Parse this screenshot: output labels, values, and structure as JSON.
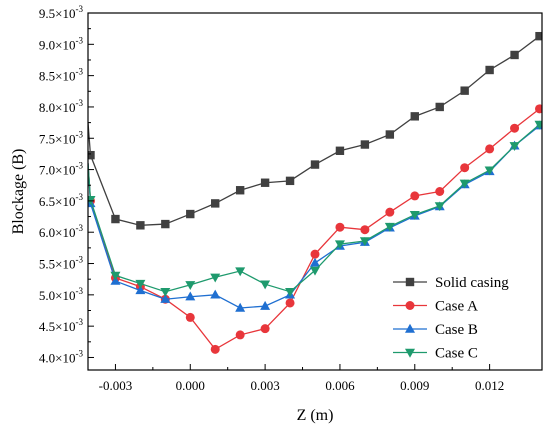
{
  "chart_data": {
    "type": "line",
    "title": "",
    "xlabel": "Z (m)",
    "ylabel": "Blockage (B)",
    "xlim": [
      -0.0041,
      0.0141
    ],
    "ylim": [
      0.0038,
      0.0095
    ],
    "x_ticks": [
      {
        "value": -0.003,
        "label": "-0.003"
      },
      {
        "value": 0.0,
        "label": "0.000"
      },
      {
        "value": 0.003,
        "label": "0.003"
      },
      {
        "value": 0.006,
        "label": "0.006"
      },
      {
        "value": 0.009,
        "label": "0.009"
      },
      {
        "value": 0.012,
        "label": "0.012"
      }
    ],
    "y_ticks": [
      {
        "value": 0.004,
        "mantissa": "4.0×10",
        "exp": "-3"
      },
      {
        "value": 0.0045,
        "mantissa": "4.5×10",
        "exp": "-3"
      },
      {
        "value": 0.005,
        "mantissa": "5.0×10",
        "exp": "-3"
      },
      {
        "value": 0.0055,
        "mantissa": "5.5×10",
        "exp": "-3"
      },
      {
        "value": 0.006,
        "mantissa": "6.0×10",
        "exp": "-3"
      },
      {
        "value": 0.0065,
        "mantissa": "6.5×10",
        "exp": "-3"
      },
      {
        "value": 0.007,
        "mantissa": "7.0×10",
        "exp": "-3"
      },
      {
        "value": 0.0075,
        "mantissa": "7.5×10",
        "exp": "-3"
      },
      {
        "value": 0.008,
        "mantissa": "8.0×10",
        "exp": "-3"
      },
      {
        "value": 0.0085,
        "mantissa": "8.5×10",
        "exp": "-3"
      },
      {
        "value": 0.009,
        "mantissa": "9.0×10",
        "exp": "-3"
      },
      {
        "value": 0.0095,
        "mantissa": "9.5×10",
        "exp": "-3"
      }
    ],
    "grid": false,
    "legend_position": "bottom-right",
    "series": [
      {
        "name": "Solid casing",
        "color": "#404040",
        "marker": "square",
        "x": [
          -0.0041,
          -0.004,
          -0.003,
          -0.002,
          -0.001,
          0.0,
          0.001,
          0.002,
          0.003,
          0.004,
          0.005,
          0.006,
          0.007,
          0.008,
          0.009,
          0.01,
          0.011,
          0.012,
          0.013,
          0.014
        ],
        "y": [
          0.00775,
          0.00723,
          0.00621,
          0.00611,
          0.00613,
          0.00629,
          0.00646,
          0.00667,
          0.00679,
          0.00682,
          0.00708,
          0.0073,
          0.0074,
          0.00756,
          0.00785,
          0.008,
          0.00826,
          0.00859,
          0.00883,
          0.00913
        ],
        "markers_from": 1
      },
      {
        "name": "Case A",
        "color": "#e8363b",
        "marker": "circle",
        "x": [
          -0.0041,
          -0.004,
          -0.003,
          -0.002,
          -0.001,
          0.0,
          0.001,
          0.002,
          0.003,
          0.004,
          0.005,
          0.006,
          0.007,
          0.008,
          0.009,
          0.01,
          0.011,
          0.012,
          0.013,
          0.014
        ],
        "y": [
          0.0071,
          0.0065,
          0.00527,
          0.00513,
          0.00493,
          0.00464,
          0.00413,
          0.00436,
          0.00446,
          0.00487,
          0.00565,
          0.00608,
          0.00604,
          0.00632,
          0.00658,
          0.00665,
          0.00703,
          0.00733,
          0.00766,
          0.00797
        ],
        "markers_from": 1
      },
      {
        "name": "Case B",
        "color": "#1f6fd1",
        "marker": "triangle-up",
        "x": [
          -0.0041,
          -0.004,
          -0.003,
          -0.002,
          -0.001,
          0.0,
          0.001,
          0.002,
          0.003,
          0.004,
          0.005,
          0.006,
          0.007,
          0.008,
          0.009,
          0.01,
          0.011,
          0.012,
          0.013,
          0.014
        ],
        "y": [
          0.0071,
          0.00646,
          0.00522,
          0.00507,
          0.00493,
          0.00497,
          0.005,
          0.00479,
          0.00482,
          0.005,
          0.00551,
          0.00578,
          0.00584,
          0.00607,
          0.00626,
          0.00641,
          0.00676,
          0.00697,
          0.00738,
          0.0077
        ],
        "markers_from": 1
      },
      {
        "name": "Case C",
        "color": "#1e9a6d",
        "marker": "triangle-down",
        "x": [
          -0.0041,
          -0.004,
          -0.003,
          -0.002,
          -0.001,
          0.0,
          0.001,
          0.002,
          0.003,
          0.004,
          0.005,
          0.006,
          0.007,
          0.008,
          0.009,
          0.01,
          0.011,
          0.012,
          0.013,
          0.014
        ],
        "y": [
          0.0071,
          0.00652,
          0.00531,
          0.00518,
          0.00505,
          0.00516,
          0.00528,
          0.00538,
          0.00517,
          0.00505,
          0.00539,
          0.00581,
          0.00586,
          0.00609,
          0.00628,
          0.00642,
          0.00678,
          0.00699,
          0.00738,
          0.00772
        ],
        "markers_from": 1
      }
    ]
  }
}
